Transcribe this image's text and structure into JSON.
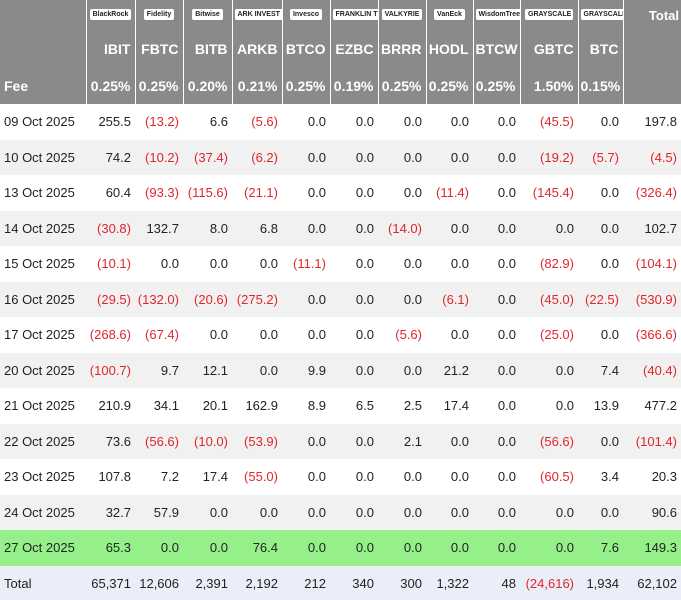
{
  "table": {
    "logos": [
      "BlackRock",
      "Fidelity",
      "Bitwise",
      "ARK INVEST",
      "Invesco",
      "FRANKLIN TEMPLETON",
      "VALKYRIE",
      "VanEck",
      "WisdomTree",
      "GRAYSCALE",
      "GRAYSCALE"
    ],
    "total_header": "Total",
    "tickers": [
      "IBIT",
      "FBTC",
      "BITB",
      "ARKB",
      "BTCO",
      "EZBC",
      "BRRR",
      "HODL",
      "BTCW",
      "GBTC",
      "BTC"
    ],
    "fee_label": "Fee",
    "fees": [
      "0.25%",
      "0.25%",
      "0.20%",
      "0.21%",
      "0.25%",
      "0.19%",
      "0.25%",
      "0.25%",
      "0.25%",
      "1.50%",
      "0.15%"
    ],
    "rows": [
      [
        "09 Oct 2025",
        "255.5",
        "(13.2)",
        "6.6",
        "(5.6)",
        "0.0",
        "0.0",
        "0.0",
        "0.0",
        "0.0",
        "(45.5)",
        "0.0",
        "197.8"
      ],
      [
        "10 Oct 2025",
        "74.2",
        "(10.2)",
        "(37.4)",
        "(6.2)",
        "0.0",
        "0.0",
        "0.0",
        "0.0",
        "0.0",
        "(19.2)",
        "(5.7)",
        "(4.5)"
      ],
      [
        "13 Oct 2025",
        "60.4",
        "(93.3)",
        "(115.6)",
        "(21.1)",
        "0.0",
        "0.0",
        "0.0",
        "(11.4)",
        "0.0",
        "(145.4)",
        "0.0",
        "(326.4)"
      ],
      [
        "14 Oct 2025",
        "(30.8)",
        "132.7",
        "8.0",
        "6.8",
        "0.0",
        "0.0",
        "(14.0)",
        "0.0",
        "0.0",
        "0.0",
        "0.0",
        "102.7"
      ],
      [
        "15 Oct 2025",
        "(10.1)",
        "0.0",
        "0.0",
        "0.0",
        "(11.1)",
        "0.0",
        "0.0",
        "0.0",
        "0.0",
        "(82.9)",
        "0.0",
        "(104.1)"
      ],
      [
        "16 Oct 2025",
        "(29.5)",
        "(132.0)",
        "(20.6)",
        "(275.2)",
        "0.0",
        "0.0",
        "0.0",
        "(6.1)",
        "0.0",
        "(45.0)",
        "(22.5)",
        "(530.9)"
      ],
      [
        "17 Oct 2025",
        "(268.6)",
        "(67.4)",
        "0.0",
        "0.0",
        "0.0",
        "0.0",
        "(5.6)",
        "0.0",
        "0.0",
        "(25.0)",
        "0.0",
        "(366.6)"
      ],
      [
        "20 Oct 2025",
        "(100.7)",
        "9.7",
        "12.1",
        "0.0",
        "9.9",
        "0.0",
        "0.0",
        "21.2",
        "0.0",
        "0.0",
        "7.4",
        "(40.4)"
      ],
      [
        "21 Oct 2025",
        "210.9",
        "34.1",
        "20.1",
        "162.9",
        "8.9",
        "6.5",
        "2.5",
        "17.4",
        "0.0",
        "0.0",
        "13.9",
        "477.2"
      ],
      [
        "22 Oct 2025",
        "73.6",
        "(56.6)",
        "(10.0)",
        "(53.9)",
        "0.0",
        "0.0",
        "2.1",
        "0.0",
        "0.0",
        "(56.6)",
        "0.0",
        "(101.4)"
      ],
      [
        "23 Oct 2025",
        "107.8",
        "7.2",
        "17.4",
        "(55.0)",
        "0.0",
        "0.0",
        "0.0",
        "0.0",
        "0.0",
        "(60.5)",
        "3.4",
        "20.3"
      ],
      [
        "24 Oct 2025",
        "32.7",
        "57.9",
        "0.0",
        "0.0",
        "0.0",
        "0.0",
        "0.0",
        "0.0",
        "0.0",
        "0.0",
        "0.0",
        "90.6"
      ],
      [
        "27 Oct 2025",
        "65.3",
        "0.0",
        "0.0",
        "76.4",
        "0.0",
        "0.0",
        "0.0",
        "0.0",
        "0.0",
        "0.0",
        "7.6",
        "149.3"
      ]
    ],
    "total_row": [
      "Total",
      "65,371",
      "12,606",
      "2,391",
      "2,192",
      "212",
      "340",
      "300",
      "1,322",
      "48",
      "(24,616)",
      "1,934",
      "62,102"
    ]
  }
}
